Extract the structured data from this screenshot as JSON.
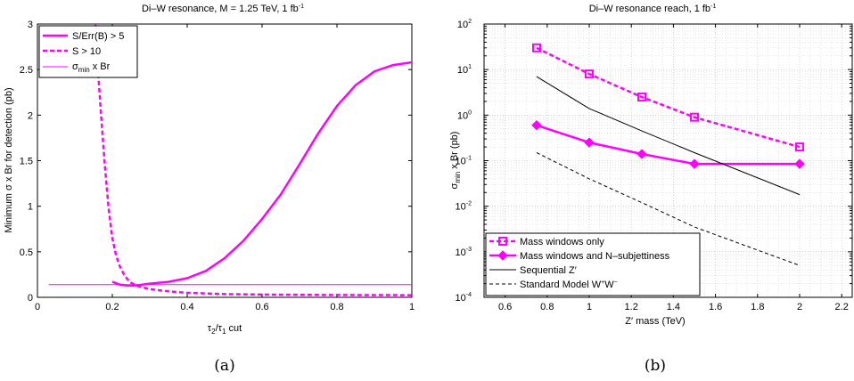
{
  "chart_data": [
    {
      "type": "line",
      "title": "Di–W resonance, M = 1.25 TeV, 1 fb",
      "title_sup": "-1",
      "xlabel": "τ",
      "xlabel_parts": [
        "τ",
        "2",
        "/τ",
        "1",
        " cut"
      ],
      "ylabel": "Minimum σ x Br for detection (pb)",
      "xlim": [
        0,
        1
      ],
      "ylim": [
        0,
        3
      ],
      "xticks": [
        "0",
        "0.2",
        "0.4",
        "0.6",
        "0.8",
        "1"
      ],
      "yticks": [
        "0",
        "0.5",
        "1",
        "1.5",
        "2",
        "2.5",
        "3"
      ],
      "xtick_values": [
        0,
        0.2,
        0.4,
        0.6,
        0.8,
        1
      ],
      "ytick_values": [
        0,
        0.5,
        1,
        1.5,
        2,
        2.5,
        3
      ],
      "grid": false,
      "legend_position": "top-left",
      "series": [
        {
          "name": "S/Err(B) > 5",
          "color": "#ff00ff",
          "style": "solid-thick",
          "x": [
            0.2,
            0.22,
            0.24,
            0.26,
            0.28,
            0.3,
            0.35,
            0.4,
            0.45,
            0.5,
            0.55,
            0.6,
            0.65,
            0.7,
            0.75,
            0.8,
            0.85,
            0.9,
            0.95,
            1.0
          ],
          "y": [
            0.17,
            0.14,
            0.13,
            0.13,
            0.14,
            0.15,
            0.17,
            0.21,
            0.29,
            0.43,
            0.62,
            0.86,
            1.13,
            1.46,
            1.8,
            2.1,
            2.33,
            2.48,
            2.55,
            2.58
          ]
        },
        {
          "name": "S > 10",
          "color": "#ff00ff",
          "style": "dashed-thick",
          "x": [
            0.155,
            0.16,
            0.17,
            0.18,
            0.19,
            0.2,
            0.21,
            0.22,
            0.23,
            0.24,
            0.25,
            0.27,
            0.3,
            0.35,
            0.4,
            0.5,
            0.6,
            0.7,
            0.8,
            0.9,
            1.0
          ],
          "y": [
            3.0,
            2.6,
            2.0,
            1.45,
            0.98,
            0.65,
            0.46,
            0.34,
            0.26,
            0.2,
            0.16,
            0.12,
            0.09,
            0.065,
            0.05,
            0.035,
            0.03,
            0.027,
            0.025,
            0.024,
            0.023
          ]
        },
        {
          "name": "σ",
          "name_parts": [
            "σ",
            "min",
            " x Br"
          ],
          "color": "#ff00ff",
          "style": "solid-thin",
          "x": [
            0.03,
            1.0
          ],
          "y": [
            0.14,
            0.14
          ]
        }
      ]
    },
    {
      "type": "line",
      "title": "Di–W resonance reach, 1 fb",
      "title_sup": "-1",
      "xlabel": "Z′ mass (TeV)",
      "ylabel_parts": [
        "σ",
        "min",
        " x Br (pb)"
      ],
      "xlim": [
        0.5,
        2.25
      ],
      "ylim": [
        0.0001,
        100
      ],
      "yscale": "log",
      "xticks": [
        "0.6",
        "0.8",
        "1",
        "1.2",
        "1.4",
        "1.6",
        "1.8",
        "2",
        "2.2"
      ],
      "xtick_values": [
        0.6,
        0.8,
        1.0,
        1.2,
        1.4,
        1.6,
        1.8,
        2.0,
        2.2
      ],
      "ytick_exponents": [
        "-4",
        "-3",
        "-2",
        "-1",
        "0",
        "1",
        "2"
      ],
      "ytick_base": "10",
      "grid": true,
      "legend_position": "bottom-left",
      "series": [
        {
          "name": "Mass windows only",
          "color": "#ff00ff",
          "style": "dashed-thick",
          "marker": "square",
          "x": [
            0.75,
            1.0,
            1.25,
            1.5,
            2.0
          ],
          "y": [
            30,
            8,
            2.5,
            0.9,
            0.2
          ]
        },
        {
          "name": "Mass windows and N–subjettiness",
          "color": "#ff00ff",
          "style": "solid-thick",
          "marker": "diamond",
          "x": [
            0.75,
            1.0,
            1.25,
            1.5,
            2.0
          ],
          "y": [
            0.6,
            0.25,
            0.14,
            0.085,
            0.085
          ]
        },
        {
          "name": "Sequential Z′",
          "color": "#000000",
          "style": "solid-thin",
          "x": [
            0.75,
            1.0,
            1.25,
            1.5,
            2.0
          ],
          "y": [
            7.0,
            1.4,
            0.45,
            0.15,
            0.018
          ]
        },
        {
          "name": "Standard Model W",
          "name_parts": [
            "Standard Model W",
            "+",
            "W",
            "−"
          ],
          "color": "#000000",
          "style": "dashed-thin",
          "x": [
            0.75,
            1.0,
            1.25,
            1.5,
            2.0
          ],
          "y": [
            0.15,
            0.04,
            0.012,
            0.0035,
            0.0005
          ]
        }
      ]
    }
  ],
  "captions": [
    "(a)",
    "(b)"
  ]
}
